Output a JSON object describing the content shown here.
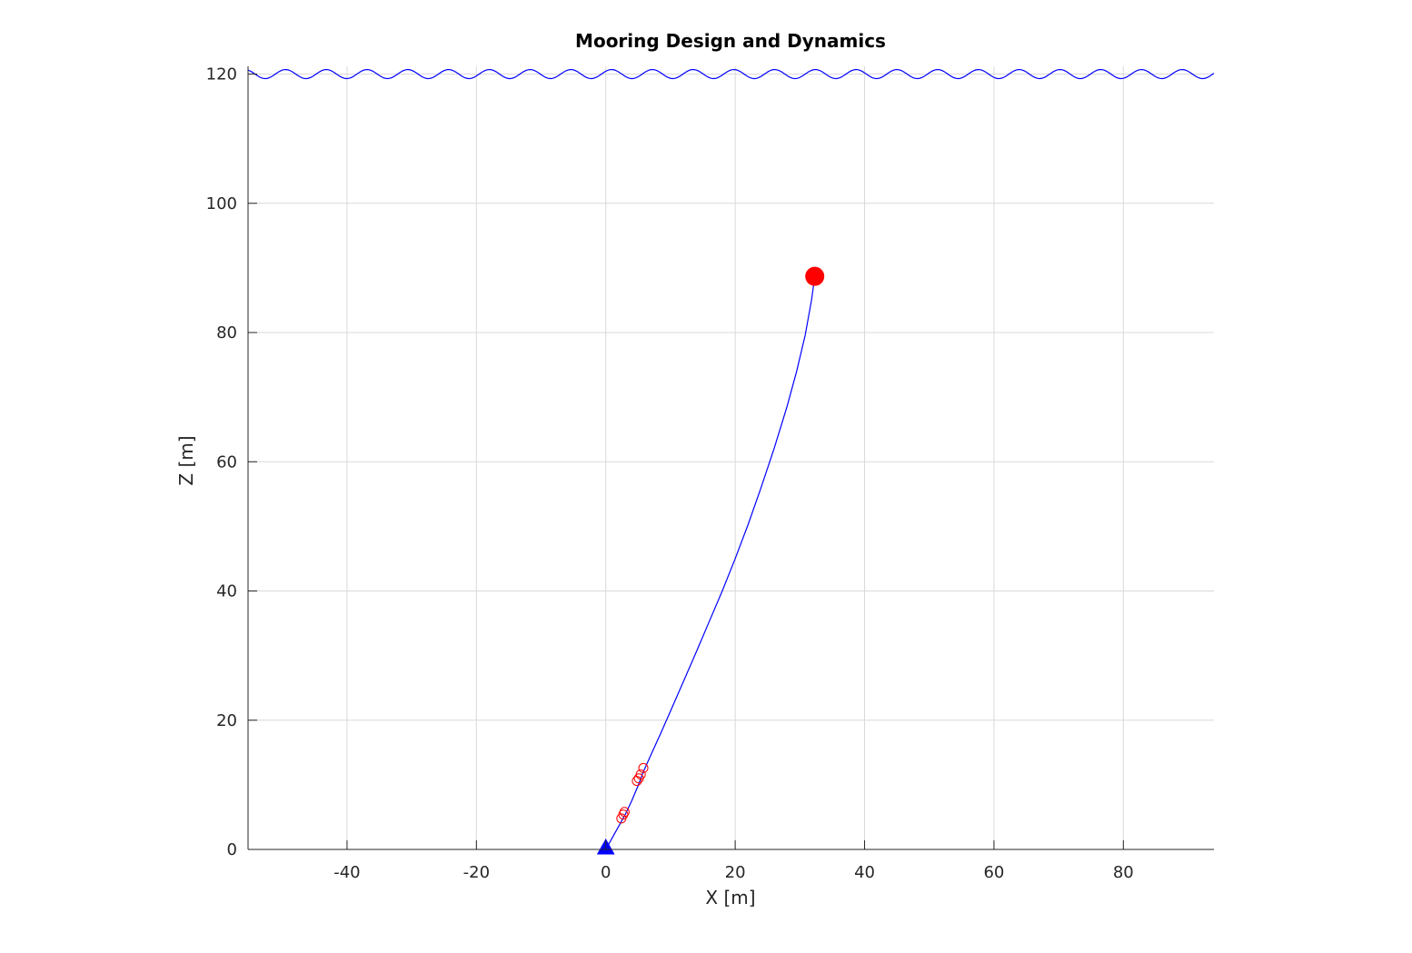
{
  "chart_data": {
    "type": "line",
    "title": "Mooring Design and Dynamics",
    "xlabel": "X [m]",
    "ylabel": "Z [m]",
    "xlim": [
      -55.3,
      94.0
    ],
    "ylim": [
      0,
      121.2
    ],
    "xticks": [
      -40,
      -20,
      0,
      20,
      40,
      60,
      80
    ],
    "yticks": [
      0,
      20,
      40,
      60,
      80,
      100,
      120
    ],
    "grid": true,
    "surface_wave": {
      "mean_level": 120.0,
      "amplitude": 0.7,
      "wavelength": 6.3,
      "color": "#0000ff"
    },
    "series": [
      {
        "kind": "mooring-line",
        "color": "#0000ff",
        "x": [
          0.0,
          1.0,
          2.0,
          3.0,
          4.0,
          5.0,
          5.8,
          7.0,
          8.5,
          10.0,
          12.0,
          14.0,
          16.0,
          18.0,
          20.0,
          22.0,
          24.0,
          26.0,
          28.0,
          29.5,
          30.8,
          31.8,
          32.3
        ],
        "y": [
          0.0,
          1.8,
          3.6,
          5.4,
          7.5,
          9.9,
          12.0,
          14.7,
          18.0,
          21.4,
          26.0,
          30.6,
          35.3,
          40.0,
          45.0,
          50.3,
          56.0,
          62.0,
          68.5,
          74.0,
          79.5,
          85.0,
          88.7
        ]
      },
      {
        "kind": "instruments",
        "marker": "open-circle",
        "color": "#ff0000",
        "x": [
          2.4,
          2.7,
          2.9,
          4.8,
          5.1,
          5.4,
          5.8
        ],
        "y": [
          4.8,
          5.4,
          5.8,
          10.6,
          11.0,
          11.6,
          12.6
        ]
      },
      {
        "kind": "top-buoy",
        "marker": "filled-circle",
        "color": "#ff0000",
        "x": [
          32.3
        ],
        "y": [
          88.7
        ]
      },
      {
        "kind": "anchor",
        "marker": "filled-triangle",
        "color": "#0000ff",
        "x": [
          0.0
        ],
        "y": [
          0.0
        ]
      }
    ]
  }
}
